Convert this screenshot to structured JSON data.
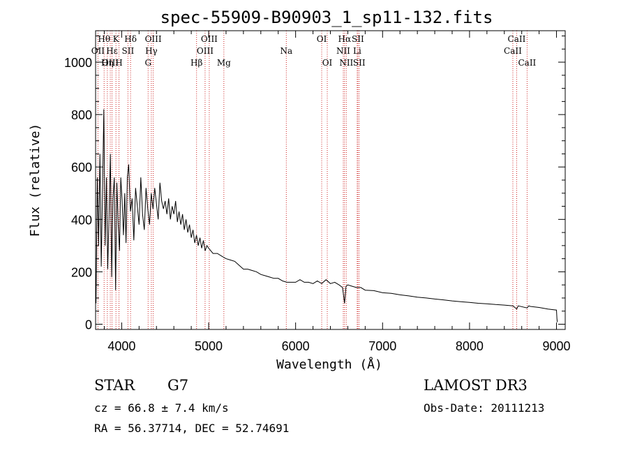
{
  "chart_data": {
    "type": "line",
    "title": "spec-55909-B90903_1_sp11-132.fits",
    "xlabel": "Wavelength (Å)",
    "ylabel": "Flux (relative)",
    "xlim": [
      3700,
      9100
    ],
    "ylim": [
      -20,
      1120
    ],
    "x_ticks": [
      4000,
      5000,
      6000,
      7000,
      8000,
      9000
    ],
    "y_ticks": [
      0,
      200,
      400,
      600,
      800,
      1000
    ],
    "grid": false,
    "series": [
      {
        "name": "flux",
        "x": [
          3705,
          3720,
          3735,
          3750,
          3765,
          3780,
          3795,
          3810,
          3825,
          3840,
          3855,
          3870,
          3885,
          3900,
          3915,
          3930,
          3945,
          3960,
          3975,
          3990,
          4005,
          4020,
          4035,
          4050,
          4065,
          4080,
          4100,
          4120,
          4140,
          4160,
          4180,
          4200,
          4220,
          4240,
          4260,
          4280,
          4300,
          4320,
          4340,
          4360,
          4380,
          4400,
          4420,
          4440,
          4460,
          4480,
          4500,
          4520,
          4540,
          4560,
          4580,
          4600,
          4620,
          4640,
          4660,
          4680,
          4700,
          4720,
          4740,
          4760,
          4780,
          4800,
          4820,
          4840,
          4860,
          4880,
          4900,
          4920,
          4940,
          4960,
          4980,
          5000,
          5050,
          5100,
          5150,
          5200,
          5250,
          5300,
          5350,
          5400,
          5450,
          5500,
          5550,
          5600,
          5650,
          5700,
          5750,
          5800,
          5850,
          5900,
          5950,
          6000,
          6050,
          6100,
          6150,
          6200,
          6250,
          6300,
          6350,
          6400,
          6450,
          6500,
          6540,
          6563,
          6580,
          6600,
          6650,
          6700,
          6750,
          6800,
          6900,
          7000,
          7100,
          7200,
          7300,
          7400,
          7500,
          7600,
          7700,
          7800,
          7900,
          8000,
          8100,
          8200,
          8300,
          8400,
          8500,
          8542,
          8560,
          8662,
          8680,
          8700,
          8800,
          8900,
          8950,
          9000,
          9005,
          9010
        ],
        "y": [
          80,
          560,
          300,
          650,
          220,
          520,
          820,
          300,
          560,
          210,
          420,
          650,
          180,
          480,
          560,
          130,
          540,
          380,
          280,
          560,
          470,
          340,
          500,
          310,
          560,
          610,
          430,
          480,
          320,
          520,
          450,
          380,
          560,
          420,
          360,
          520,
          440,
          380,
          500,
          440,
          520,
          460,
          400,
          540,
          470,
          440,
          470,
          420,
          480,
          400,
          450,
          420,
          470,
          390,
          430,
          380,
          420,
          360,
          400,
          350,
          380,
          330,
          360,
          310,
          340,
          300,
          330,
          290,
          320,
          280,
          300,
          290,
          270,
          270,
          260,
          250,
          245,
          240,
          225,
          210,
          210,
          205,
          200,
          190,
          185,
          180,
          175,
          175,
          165,
          160,
          160,
          160,
          170,
          160,
          160,
          155,
          165,
          155,
          170,
          155,
          160,
          150,
          140,
          80,
          145,
          150,
          145,
          140,
          140,
          130,
          128,
          120,
          118,
          112,
          108,
          103,
          100,
          96,
          93,
          89,
          86,
          83,
          80,
          78,
          75,
          73,
          70,
          58,
          70,
          62,
          70,
          68,
          64,
          58,
          56,
          54,
          20,
          8
        ]
      }
    ],
    "spectral_lines": [
      {
        "name": "Hθ",
        "x": 3798,
        "row": 1
      },
      {
        "name": "OII",
        "x": 3727,
        "row": 2
      },
      {
        "name": "OIII",
        "x": 3869,
        "row": 3
      },
      {
        "name": "Hε",
        "x": 3889,
        "row": 2
      },
      {
        "name": "K",
        "x": 3934,
        "row": 1
      },
      {
        "name": "Hη",
        "x": 3835,
        "row": 3
      },
      {
        "name": "SII",
        "x": 4072,
        "row": 2
      },
      {
        "name": "H",
        "x": 3969,
        "row": 3
      },
      {
        "name": "Hδ",
        "x": 4102,
        "row": 1
      },
      {
        "name": "OIII",
        "x": 4363,
        "row": 1
      },
      {
        "name": "Hγ",
        "x": 4341,
        "row": 2
      },
      {
        "name": "G",
        "x": 4304,
        "row": 3
      },
      {
        "name": "OIII",
        "x": 5007,
        "row": 1
      },
      {
        "name": "OIII",
        "x": 4959,
        "row": 2
      },
      {
        "name": "Hβ",
        "x": 4861,
        "row": 3
      },
      {
        "name": "Mg",
        "x": 5175,
        "row": 3
      },
      {
        "name": "Na",
        "x": 5893,
        "row": 2
      },
      {
        "name": "OI",
        "x": 6300,
        "row": 1
      },
      {
        "name": "OI",
        "x": 6364,
        "row": 3
      },
      {
        "name": "Hα",
        "x": 6563,
        "row": 1
      },
      {
        "name": "NII",
        "x": 6548,
        "row": 2
      },
      {
        "name": "NII",
        "x": 6583,
        "row": 3
      },
      {
        "name": "SII",
        "x": 6716,
        "row": 1
      },
      {
        "name": "Li",
        "x": 6708,
        "row": 2
      },
      {
        "name": "SII",
        "x": 6731,
        "row": 3
      },
      {
        "name": "CaII",
        "x": 8542,
        "row": 1
      },
      {
        "name": "CaII",
        "x": 8498,
        "row": 2
      },
      {
        "name": "CaII",
        "x": 8662,
        "row": 3
      }
    ]
  },
  "info": {
    "object_class": "STAR",
    "subclass": "G7",
    "cz": "cz = 66.8 ± 7.4 km/s",
    "coords": "RA =  56.37714, DEC =  52.74691",
    "survey": "LAMOST DR3",
    "obs_date": "Obs-Date: 20111213"
  },
  "colors": {
    "line_marker": "#cc2222",
    "spectrum": "#000000",
    "axes": "#000000"
  }
}
